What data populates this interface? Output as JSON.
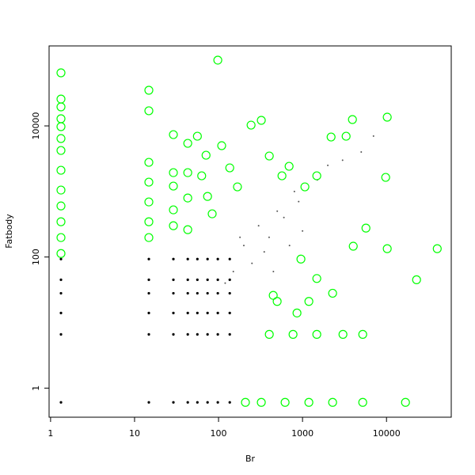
{
  "chart_data": {
    "type": "scatter",
    "x_label": "Br",
    "y_label": "Fatbody",
    "xscale": "log",
    "yscale": "log",
    "xlim": [
      0.96,
      59000
    ],
    "ylim": [
      0.36,
      166000
    ],
    "xticks": [
      1,
      10,
      100,
      1000,
      10000
    ],
    "yticks": [
      1,
      100,
      10000
    ],
    "series": [
      {
        "color": "#555555",
        "marker": "dot",
        "size": 1,
        "x": [
          300,
          500,
          800,
          1500,
          3000,
          7000,
          200,
          400,
          600,
          250,
          350,
          150,
          180,
          700,
          1000,
          120,
          450,
          2000,
          900,
          5000
        ],
        "values": [
          300,
          500,
          1000,
          1500,
          3000,
          7000,
          150,
          200,
          400,
          80,
          120,
          60,
          200,
          150,
          250,
          40,
          60,
          2500,
          700,
          4000
        ]
      },
      {
        "color": "#000000",
        "marker": "dot",
        "size": 1.6,
        "x": [
          1.33,
          1.33,
          1.33,
          1.33,
          1.33,
          1.33,
          14.8,
          14.8,
          14.8,
          14.8,
          14.8,
          14.8,
          29,
          29,
          29,
          29,
          29,
          29,
          43,
          43,
          43,
          43,
          43,
          43,
          56,
          56,
          56,
          56,
          56,
          56,
          74,
          74,
          74,
          74,
          74,
          74,
          98,
          98,
          98,
          98,
          98,
          98,
          136,
          136,
          136,
          136,
          136,
          136
        ],
        "values": [
          0.606,
          6.6,
          14,
          28,
          45,
          93,
          0.606,
          6.6,
          14,
          28,
          45,
          93,
          0.606,
          6.6,
          14,
          28,
          45,
          93,
          0.606,
          6.6,
          14,
          28,
          45,
          93,
          0.606,
          6.6,
          14,
          28,
          45,
          93,
          0.606,
          6.6,
          14,
          28,
          45,
          93,
          0.606,
          6.6,
          14,
          28,
          45,
          93,
          0.606,
          6.6,
          14,
          28,
          45,
          93
        ]
      },
      {
        "color": "#00ff00",
        "marker": "open-circle",
        "size": 5,
        "x": [
          1.33,
          1.33,
          1.33,
          1.33,
          1.33,
          1.33,
          1.33,
          1.33,
          1.33,
          1.33,
          1.33,
          1.33,
          1.33,
          14.8,
          14.8,
          14.8,
          14.8,
          14.8,
          14.8,
          14.8,
          29,
          29,
          29,
          29,
          29,
          43,
          43,
          43,
          43,
          56,
          63,
          74,
          84,
          71,
          98,
          109,
          136,
          168,
          244,
          323,
          402,
          569,
          692,
          1067,
          1479,
          2188,
          3304,
          3929,
          10200,
          9775,
          5690,
          4018,
          10200,
          40180,
          22800,
          957,
          1479,
          1190,
          2282,
          499,
          402,
          771,
          1479,
          3030,
          5212,
          323,
          620,
          1190,
          2282,
          5212,
          16830,
          209,
          448,
          859
        ],
        "values": [
          64500,
          25700,
          19500,
          12850,
          9730,
          6410,
          4220,
          2105,
          1050,
          601,
          345,
          198,
          113,
          35000,
          17000,
          2780,
          1387,
          692,
          345,
          198,
          7360,
          1936,
          1207,
          524,
          300,
          5420,
          1936,
          795,
          261,
          6960,
          1733,
          840,
          456,
          3570,
          100700,
          4990,
          2290,
          1175,
          10280,
          12160,
          3475,
          1733,
          2420,
          1175,
          1733,
          6770,
          6960,
          12500,
          13580,
          1640,
          276,
          146,
          134,
          134,
          45,
          93,
          47,
          21,
          28,
          21,
          6.6,
          6.6,
          6.6,
          6.6,
          6.6,
          0.606,
          0.606,
          0.606,
          0.606,
          0.606,
          0.606,
          0.606,
          26,
          14
        ]
      }
    ]
  }
}
